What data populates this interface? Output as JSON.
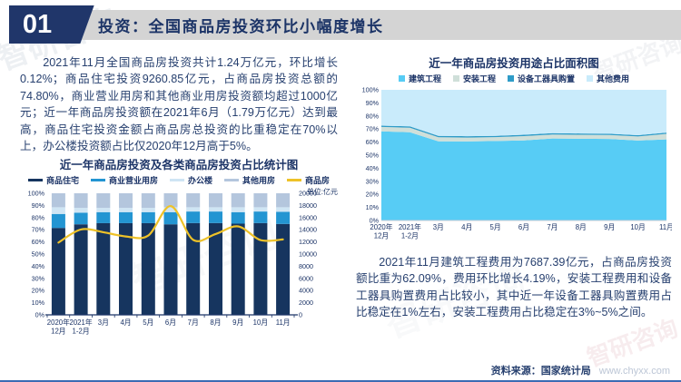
{
  "page": {
    "header": {
      "number": "01",
      "title": "投资：全国商品房投资环比小幅度增长"
    },
    "left_paragraph": "2021年11月全国商品房投资共计1.24万亿元，环比增长0.12%；商品住宅投资9260.85亿元，占商品房投资总额的74.80%，商业营业用房和其他商业用房投资额均超过1000亿元；近一年商品房投资额在2021年6月（1.79万亿元）达到最高，商品住宅投资金额占商品房总投资的比重稳定在70%以上，办公楼投资额占比仅2020年12月高于5%。",
    "right_paragraph": "2021年11月建筑工程费用为7687.39亿元，占商品房投资额比重为62.09%，费用环比增长4.19%，安装工程费用和设备工器具购置费用占比较小，其中近一年设备工器具购置费用占比稳定在1%左右，安装工程费用占比稳定在3%~5%之间。",
    "source": {
      "label": "资料来源：国家统计局",
      "url": "www.chyxx.com"
    },
    "watermark": "智研咨询"
  },
  "chart_data": [
    {
      "type": "bar",
      "title": "近一年商品房投资及各类商品房投资占比统计图",
      "unit_label": "单位:亿元",
      "categories": [
        [
          "2020年",
          "12月"
        ],
        [
          "2021年",
          "1-2月"
        ],
        [
          "3月"
        ],
        [
          "4月"
        ],
        [
          "5月"
        ],
        [
          "6月"
        ],
        [
          "7月"
        ],
        [
          "8月"
        ],
        [
          "9月"
        ],
        [
          "10月"
        ],
        [
          "11月"
        ]
      ],
      "left_axis": {
        "min": 0,
        "max": 100,
        "step": 10,
        "suffix": "%"
      },
      "right_axis": {
        "min": 0,
        "max": 20000,
        "step": 2000
      },
      "grid": false,
      "legend_position": "top",
      "series": [
        {
          "name": "商品住宅",
          "kind": "bar",
          "color": "#16355f",
          "values": [
            71.5,
            74.5,
            75.5,
            75.5,
            75.5,
            74.5,
            75.5,
            75.5,
            75.0,
            75.5,
            74.8
          ]
        },
        {
          "name": "商业营业用房",
          "kind": "bar",
          "color": "#2395d2",
          "values": [
            11.5,
            9.5,
            9.0,
            9.0,
            9.0,
            10.0,
            9.5,
            9.5,
            9.5,
            9.5,
            10.0
          ]
        },
        {
          "name": "办公楼",
          "kind": "bar",
          "color": "#cfe5f4",
          "values": [
            5.5,
            4.0,
            3.5,
            3.5,
            3.5,
            4.0,
            3.5,
            3.5,
            4.0,
            3.5,
            3.7
          ]
        },
        {
          "name": "其他用房",
          "kind": "bar",
          "color": "#b4c6dd",
          "values": [
            11.5,
            12.0,
            12.0,
            12.0,
            12.0,
            11.5,
            11.5,
            11.5,
            11.5,
            11.5,
            11.5
          ]
        },
        {
          "name": "商品房",
          "kind": "line",
          "axis": "right",
          "color": "#eec228",
          "values": [
            11900,
            14050,
            13600,
            12900,
            13050,
            17900,
            12350,
            13300,
            14550,
            12300,
            12400
          ]
        }
      ]
    },
    {
      "type": "area",
      "title": "近一年商品房投资用途占比面积图",
      "categories": [
        [
          "2020年",
          "12月"
        ],
        [
          "2021年",
          "1-2月"
        ],
        [
          "3月"
        ],
        [
          "4月"
        ],
        [
          "5月"
        ],
        [
          "6月"
        ],
        [
          "7月"
        ],
        [
          "8月"
        ],
        [
          "9月"
        ],
        [
          "10月"
        ],
        [
          "11月"
        ]
      ],
      "left_axis": {
        "min": 0,
        "max": 100,
        "step": 10,
        "suffix": "%"
      },
      "grid": false,
      "legend_position": "top",
      "stacked_to_100": true,
      "series": [
        {
          "name": "建筑工程",
          "color": "#57ccf5",
          "values": [
            68.2,
            67.6,
            60.6,
            60.5,
            60.8,
            61.3,
            62.8,
            62.6,
            62.4,
            61.2,
            62.09
          ]
        },
        {
          "name": "安装工程",
          "color": "#cfdfd9",
          "values": [
            3.4,
            3.4,
            3.1,
            3.0,
            3.0,
            3.3,
            3.0,
            3.0,
            3.0,
            3.1,
            4.2
          ]
        },
        {
          "name": "设备工器具购置",
          "color": "#2f9cc8",
          "values": [
            1.0,
            1.0,
            1.0,
            1.0,
            1.0,
            1.0,
            1.0,
            1.0,
            1.0,
            1.0,
            1.0
          ]
        },
        {
          "name": "其他费用",
          "color": "#c9ebfb",
          "values": [
            27.4,
            28.0,
            35.3,
            35.5,
            35.2,
            34.4,
            33.2,
            33.4,
            33.6,
            34.7,
            32.71
          ]
        }
      ]
    }
  ]
}
